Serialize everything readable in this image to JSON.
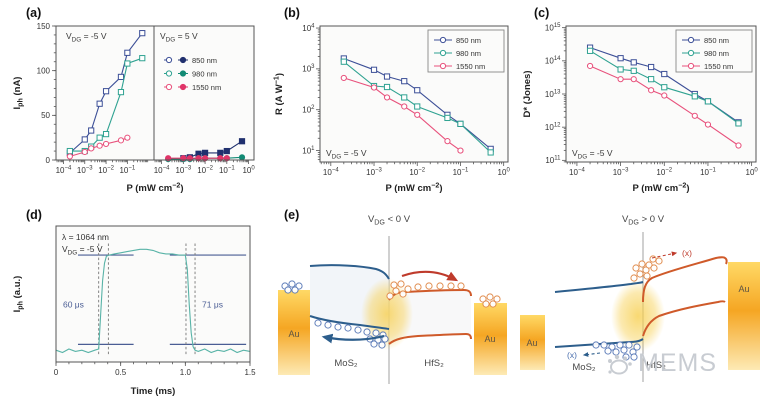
{
  "panel_labels": {
    "a": "(a)",
    "b": "(b)",
    "c": "(c)",
    "d": "(d)",
    "e": "(e)"
  },
  "colors": {
    "s850_open": "#3c4f97",
    "s850_filled": "#20306e",
    "s980_open": "#2fa291",
    "s980_filled": "#128a74",
    "s1550_open": "#e8517c",
    "s1550_filled": "#e03468",
    "axis": "#555555",
    "text": "#333333",
    "plot_bg": "#fbfbfa",
    "trace": "#58b3a7",
    "ref_line": "#4a5d94",
    "red_arrow": "#bf3b2c",
    "mos2": "#2d5e8c",
    "hfs2": "#cf5a2a",
    "gold_light": "#ffd966",
    "gold_mid": "#f5a623",
    "gold_pale": "#fdeab5",
    "spot": "#f7cf4f",
    "watermark": "#c6cad0",
    "bubble_blue": "#5a7ab8",
    "bubble_orange": "#e08a4a"
  },
  "chart_data": [
    {
      "id": "a_left",
      "type": "line",
      "xscale": "log",
      "xlabel": "P (mW cm^{−2})",
      "ylabel": "I_{ph} (nA)",
      "inner_label": "V_{DG} = -5 V",
      "xlim": [
        0.0001,
        1
      ],
      "ylim": [
        0,
        150
      ],
      "yticks": [
        0,
        50,
        100,
        150
      ],
      "series": [
        {
          "name": "850 nm",
          "marker": "square",
          "x": [
            0.0002,
            0.001,
            0.002,
            0.005,
            0.01,
            0.05,
            0.1,
            0.5
          ],
          "y": [
            8,
            23,
            33,
            63,
            77,
            93,
            120,
            142
          ]
        },
        {
          "name": "980 nm",
          "marker": "square",
          "x": [
            0.0002,
            0.001,
            0.002,
            0.005,
            0.01,
            0.05,
            0.1,
            0.5
          ],
          "y": [
            10,
            10,
            15,
            25,
            29,
            76,
            108,
            114
          ]
        },
        {
          "name": "1550 nm",
          "marker": "circle",
          "x": [
            0.0002,
            0.001,
            0.002,
            0.005,
            0.01,
            0.05,
            0.1
          ],
          "y": [
            4,
            9,
            13,
            16,
            18,
            22,
            25
          ]
        }
      ]
    },
    {
      "id": "a_right",
      "type": "line",
      "xscale": "log",
      "inner_label": "V_{DG} = 5 V",
      "xlim": [
        0.0001,
        1
      ],
      "ylim": [
        0,
        150
      ],
      "legend": [
        "850 nm",
        "980 nm",
        "1550 nm"
      ],
      "series": [
        {
          "name": "850 nm",
          "marker": "square",
          "x": [
            0.001,
            0.002,
            0.005,
            0.01,
            0.05,
            0.1,
            0.5
          ],
          "y": [
            2,
            3,
            7,
            8,
            8,
            10,
            21
          ]
        },
        {
          "name": "980 nm",
          "marker": "circle",
          "x": [
            0.0002,
            0.001,
            0.002,
            0.005,
            0.01,
            0.05,
            0.1,
            0.5
          ],
          "y": [
            1,
            1,
            1,
            2,
            2,
            2,
            2,
            3
          ]
        },
        {
          "name": "1550 nm",
          "marker": "circle",
          "x": [
            0.0002,
            0.001,
            0.002,
            0.005,
            0.01,
            0.05,
            0.1
          ],
          "y": [
            2,
            2,
            2,
            2,
            2,
            2,
            2
          ]
        }
      ]
    },
    {
      "id": "b",
      "type": "line",
      "xscale": "log",
      "yscale": "log",
      "xlabel": "P (mW cm^{−2})",
      "ylabel": "R (A W^{−1})",
      "inner_label": "V_{DG} = -5 V",
      "legend": [
        "850 nm",
        "980 nm",
        "1550 nm"
      ],
      "ylim": [
        10,
        10000
      ],
      "series": [
        {
          "name": "850 nm",
          "marker": "square",
          "x": [
            0.0002,
            0.001,
            0.002,
            0.005,
            0.01,
            0.05,
            0.1,
            0.5
          ],
          "y": [
            1800,
            950,
            650,
            500,
            300,
            75,
            45,
            11
          ]
        },
        {
          "name": "980 nm",
          "marker": "square",
          "x": [
            0.0002,
            0.001,
            0.002,
            0.005,
            0.01,
            0.05,
            0.1,
            0.5
          ],
          "y": [
            1500,
            380,
            360,
            200,
            120,
            63,
            45,
            9
          ]
        },
        {
          "name": "1550 nm",
          "marker": "circle",
          "x": [
            0.0002,
            0.001,
            0.002,
            0.005,
            0.01,
            0.05,
            0.1
          ],
          "y": [
            600,
            350,
            200,
            120,
            75,
            17,
            10
          ]
        }
      ]
    },
    {
      "id": "c",
      "type": "line",
      "xscale": "log",
      "yscale": "log",
      "xlabel": "P (mW cm^{−2})",
      "ylabel": "D* (Jones)",
      "inner_label": "V_{DG} = -5 V",
      "legend": [
        "850 nm",
        "980 nm",
        "1550 nm"
      ],
      "ylim": [
        100000000000.0,
        1000000000000000.0
      ],
      "series": [
        {
          "name": "850 nm",
          "marker": "square",
          "x": [
            0.0002,
            0.001,
            0.002,
            0.005,
            0.01,
            0.05,
            0.1,
            0.5
          ],
          "y": [
            250000000000000.0,
            120000000000000.0,
            90000000000000.0,
            65000000000000.0,
            40000000000000.0,
            10000000000000.0,
            6000000000000.0,
            1400000000000.0
          ]
        },
        {
          "name": "980 nm",
          "marker": "square",
          "x": [
            0.0002,
            0.001,
            0.002,
            0.005,
            0.01,
            0.05,
            0.1,
            0.5
          ],
          "y": [
            200000000000000.0,
            55000000000000.0,
            50000000000000.0,
            28000000000000.0,
            16000000000000.0,
            8500000000000.0,
            6000000000000.0,
            1300000000000.0
          ]
        },
        {
          "name": "1550 nm",
          "marker": "circle",
          "x": [
            0.0002,
            0.001,
            0.002,
            0.005,
            0.01,
            0.05,
            0.1,
            0.5
          ],
          "y": [
            70000000000000.0,
            28000000000000.0,
            28000000000000.0,
            13000000000000.0,
            9000000000000.0,
            2200000000000.0,
            1200000000000.0,
            280000000000.0
          ]
        }
      ]
    },
    {
      "id": "d",
      "type": "line",
      "xlabel": "Time (ms)",
      "ylabel": "I_{ph} (a.u.)",
      "xlim": [
        0,
        1.5
      ],
      "xticks": [
        0,
        0.5,
        1.0,
        1.5
      ],
      "xtick_labels": [
        "0",
        "0.5",
        "1.0",
        "1.5"
      ],
      "annotations": [
        "λ = 1064 nm",
        "V_{DG} = -5 V"
      ],
      "rise_time_label": "60 μs",
      "fall_time_label": "71 μs",
      "rise_markers": [
        0.33,
        0.405
      ],
      "fall_markers": [
        1.005,
        1.075
      ],
      "ref_levels": {
        "high": 0.87,
        "low": 0.1
      },
      "ref_segments": [
        [
          0.17,
          0.6
        ],
        [
          0.88,
          1.47
        ]
      ],
      "trace": {
        "t": [
          0,
          0.05,
          0.1,
          0.15,
          0.2,
          0.25,
          0.3,
          0.33,
          0.345,
          0.36,
          0.375,
          0.39,
          0.41,
          0.45,
          0.5,
          0.55,
          0.6,
          0.65,
          0.7,
          0.75,
          0.8,
          0.85,
          0.9,
          0.95,
          1.0,
          1.015,
          1.03,
          1.045,
          1.06,
          1.075,
          1.1,
          1.15,
          1.2,
          1.25,
          1.3,
          1.35,
          1.4,
          1.45,
          1.5
        ],
        "y": [
          0.05,
          0.03,
          0.06,
          0.04,
          0.05,
          0.03,
          0.05,
          0.06,
          0.35,
          0.65,
          0.8,
          0.86,
          0.87,
          0.88,
          0.89,
          0.9,
          0.91,
          0.92,
          0.92,
          0.91,
          0.89,
          0.88,
          0.88,
          0.87,
          0.87,
          0.75,
          0.45,
          0.2,
          0.08,
          0.05,
          0.04,
          0.06,
          0.03,
          0.05,
          0.04,
          0.06,
          0.03,
          0.05,
          0.04
        ]
      }
    }
  ],
  "panel_e": {
    "left": {
      "title": "V_{DG} < 0 V",
      "au_left": "Au",
      "au_right": "Au",
      "material_left": "MoS₂",
      "material_right": "HfS₂"
    },
    "right": {
      "title": "V_{DG} > 0 V",
      "au_left": "Au",
      "au_right": "Au",
      "material_left": "MoS₂",
      "material_right": "HfS₂",
      "blocked_top": "(x)",
      "blocked_bottom": "(x)"
    }
  },
  "watermark": {
    "text": "MEMS"
  }
}
